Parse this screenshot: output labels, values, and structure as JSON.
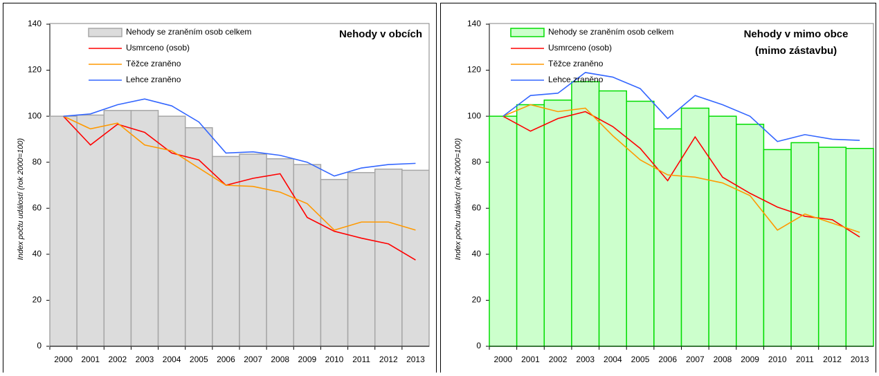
{
  "chart_data": [
    {
      "type": "combo",
      "title": [
        "Nehody v obcích"
      ],
      "y_label": "Index počtu událostí (rok 2000=100)",
      "categories": [
        "2000",
        "2001",
        "2002",
        "2003",
        "2004",
        "2005",
        "2006",
        "2007",
        "2008",
        "2009",
        "2010",
        "2011",
        "2012",
        "2013"
      ],
      "ylim": [
        0,
        140
      ],
      "yticks": [
        0,
        20,
        40,
        60,
        80,
        100,
        120,
        140
      ],
      "series": [
        {
          "name": "Nehody se zraněním osob celkem",
          "type": "bar",
          "color": "#dcdcdc",
          "stroke": "#a6a6a6",
          "values": [
            100,
            100.5,
            102.5,
            102.5,
            100,
            95,
            82.5,
            83.5,
            81.5,
            79,
            72.5,
            75.5,
            77,
            76.5
          ]
        },
        {
          "name": "Usmrceno (osob)",
          "type": "line",
          "color": "#ff0000",
          "values": [
            100,
            87.5,
            96.5,
            93,
            84,
            81,
            70,
            73,
            75,
            56,
            50,
            47,
            44.5,
            37.5
          ]
        },
        {
          "name": "Těžce zraněno",
          "type": "line",
          "color": "#ff9900",
          "values": [
            100,
            94.5,
            97,
            87.5,
            85,
            77.5,
            70,
            69.5,
            67,
            62,
            50.5,
            54,
            54,
            50.5
          ]
        },
        {
          "name": "Lehce zraněno",
          "type": "line",
          "color": "#3366ff",
          "values": [
            100,
            101,
            105,
            107.5,
            104.5,
            97.5,
            84,
            84.5,
            83,
            80,
            74,
            77.5,
            79,
            79.5
          ]
        }
      ]
    },
    {
      "type": "combo",
      "title": [
        "Nehody v mimo obce",
        "(mimo zástavbu)"
      ],
      "y_label": "Index počtu událostí (rok 2000=100)",
      "categories": [
        "2000",
        "2001",
        "2002",
        "2003",
        "2004",
        "2005",
        "2006",
        "2007",
        "2008",
        "2009",
        "2010",
        "2011",
        "2012",
        "2013"
      ],
      "ylim": [
        0,
        140
      ],
      "yticks": [
        0,
        20,
        40,
        60,
        80,
        100,
        120,
        140
      ],
      "series": [
        {
          "name": "Nehody se zraněním osob celkem",
          "type": "bar",
          "color": "#ccffcc",
          "stroke": "#00dd00",
          "values": [
            100,
            105,
            107,
            115,
            111,
            106.5,
            94.5,
            103.5,
            100,
            96.5,
            85.5,
            88.5,
            86.5,
            86
          ]
        },
        {
          "name": "Usmrceno (osob)",
          "type": "line",
          "color": "#ff0000",
          "values": [
            100,
            93.5,
            99,
            102,
            95.5,
            86,
            72,
            91,
            73.5,
            66.5,
            60.5,
            56.5,
            55,
            47.5
          ]
        },
        {
          "name": "Těžce zraněno",
          "type": "line",
          "color": "#ff9900",
          "values": [
            100,
            105,
            102,
            103.5,
            91.5,
            81,
            74.5,
            73.5,
            71,
            65.5,
            50.5,
            57.5,
            53.5,
            49.5
          ]
        },
        {
          "name": "Lehce zraněno",
          "type": "line",
          "color": "#3366ff",
          "values": [
            100,
            109,
            110,
            119,
            117,
            112,
            99,
            109,
            105,
            100,
            89,
            92,
            90,
            89.5
          ]
        }
      ]
    }
  ]
}
